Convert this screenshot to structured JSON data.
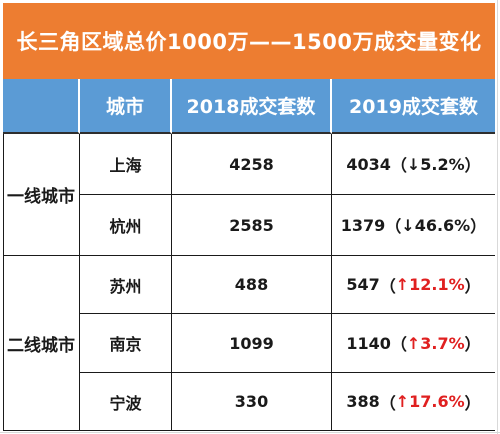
{
  "title": "长三角区域总价1000万——1500万成交量变化",
  "headers": {
    "group": "",
    "city": "城市",
    "y2018": "2018成交套数",
    "y2019": "2019成交套数"
  },
  "groups": [
    {
      "name": "一线城市"
    },
    {
      "name": "二线城市"
    }
  ],
  "rows": [
    {
      "city": "上海",
      "v2018": "4258",
      "v2019": "4034",
      "open": "（",
      "arrow": "↓",
      "pct": "5.2%",
      "close": "）",
      "trend": "down"
    },
    {
      "city": "杭州",
      "v2018": "2585",
      "v2019": "1379",
      "open": "（",
      "arrow": "↓",
      "pct": "46.6%",
      "close": "）",
      "trend": "down"
    },
    {
      "city": "苏州",
      "v2018": "488",
      "v2019": "547",
      "open": "（",
      "arrow": "↑",
      "pct": "12.1%",
      "close": "）",
      "trend": "up"
    },
    {
      "city": "南京",
      "v2018": "1099",
      "v2019": "1140",
      "open": "（",
      "arrow": "↑",
      "pct": "3.7%",
      "close": "）",
      "trend": "up"
    },
    {
      "city": "宁波",
      "v2018": "330",
      "v2019": "388",
      "open": "（",
      "arrow": "↑",
      "pct": "17.6%",
      "close": "）",
      "trend": "up"
    }
  ],
  "colors": {
    "title_bg": "#ed7d31",
    "header_bg": "#5b9bd5",
    "up_color": "#e02020",
    "text": "#1a1a1a"
  }
}
